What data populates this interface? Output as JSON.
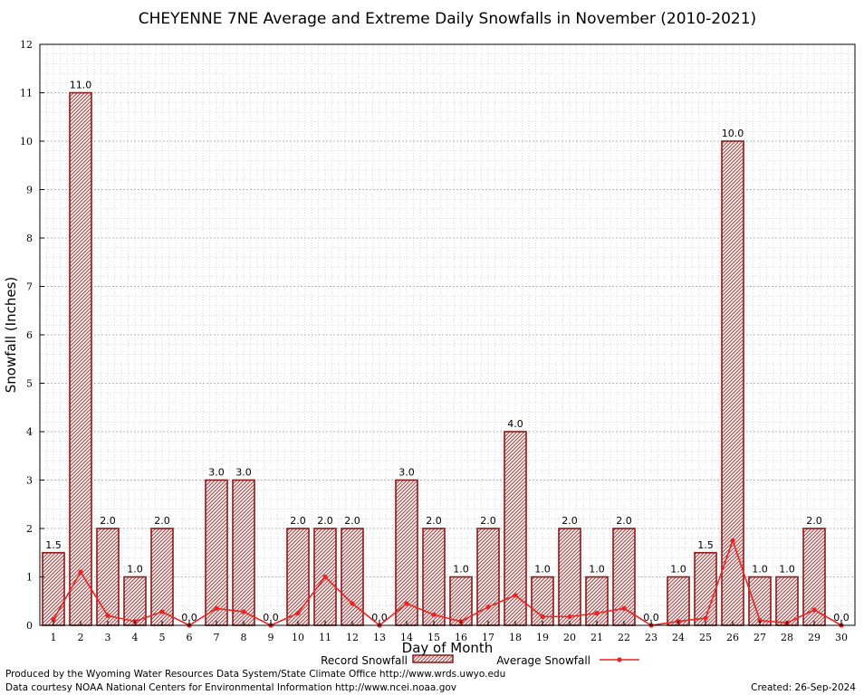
{
  "chart_data": {
    "type": "bar",
    "title": "CHEYENNE 7NE Average and Extreme Daily Snowfalls in November (2010-2021)",
    "xlabel": "Day of Month",
    "ylabel": "Snowfall (Inches)",
    "ylim": [
      0,
      12
    ],
    "yticks": [
      "0",
      "1",
      "2",
      "3",
      "4",
      "5",
      "6",
      "7",
      "8",
      "9",
      "10",
      "11",
      "12"
    ],
    "categories": [
      "1",
      "2",
      "3",
      "4",
      "5",
      "6",
      "7",
      "8",
      "9",
      "10",
      "11",
      "12",
      "13",
      "14",
      "15",
      "16",
      "17",
      "18",
      "19",
      "20",
      "21",
      "22",
      "23",
      "24",
      "25",
      "26",
      "27",
      "28",
      "29",
      "30"
    ],
    "grid": true,
    "series": [
      {
        "name": "Record Snowfall",
        "kind": "bar",
        "color": "#8b1a1a",
        "values": [
          1.5,
          11.0,
          2.0,
          1.0,
          2.0,
          0.0,
          3.0,
          3.0,
          0.0,
          2.0,
          2.0,
          2.0,
          0.0,
          3.0,
          2.0,
          1.0,
          2.0,
          4.0,
          1.0,
          2.0,
          1.0,
          2.0,
          0.0,
          1.0,
          1.5,
          10.0,
          1.0,
          1.0,
          2.0,
          0.0
        ],
        "labels": [
          "1.5",
          "11.0",
          "2.0",
          "1.0",
          "2.0",
          "0.0",
          "3.0",
          "3.0",
          "0.0",
          "2.0",
          "2.0",
          "2.0",
          "0.0",
          "3.0",
          "2.0",
          "1.0",
          "2.0",
          "4.0",
          "1.0",
          "2.0",
          "1.0",
          "2.0",
          "0.0",
          "1.0",
          "1.5",
          "10.0",
          "1.0",
          "1.0",
          "2.0",
          "0.0"
        ]
      },
      {
        "name": "Average Snowfall",
        "kind": "line",
        "color": "#ee2222",
        "values": [
          0.12,
          1.1,
          0.2,
          0.08,
          0.28,
          0.0,
          0.35,
          0.28,
          0.0,
          0.25,
          1.0,
          0.45,
          0.0,
          0.45,
          0.22,
          0.08,
          0.38,
          0.62,
          0.18,
          0.18,
          0.25,
          0.35,
          0.0,
          0.08,
          0.15,
          1.75,
          0.1,
          0.05,
          0.32,
          0.0
        ]
      }
    ],
    "legend_position": "bottom-center"
  },
  "footer": {
    "left_line1": "Produced by the Wyoming Water Resources Data System/State Climate Office http://www.wrds.uwyo.edu",
    "left_line2": "Data courtesy NOAA National Centers for Environmental Information http://www.ncei.noaa.gov",
    "created": "Created: 26-Sep-2024"
  }
}
